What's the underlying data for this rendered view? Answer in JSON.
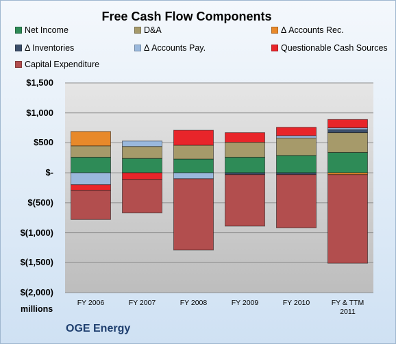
{
  "chart_data": {
    "type": "bar",
    "stacked": true,
    "title": "Free Cash Flow Components",
    "categories": [
      "FY 2006",
      "FY 2007",
      "FY 2008",
      "FY 2009",
      "FY 2010",
      "FY & TTM 2011"
    ],
    "ylim": [
      -2000,
      1500
    ],
    "yticks": [
      1500,
      1000,
      500,
      0,
      -500,
      -1000,
      -1500,
      -2000
    ],
    "ytick_labels": [
      "$1,500",
      "$1,000",
      "$500",
      "$-",
      "$(500)",
      "$(1,000)",
      "$(1,500)",
      "$(2,000)"
    ],
    "unit_label": "millions",
    "grid": true,
    "legend_position": "top",
    "series": [
      {
        "name": "Net Income",
        "color": "#2e8b57",
        "values": [
          260,
          240,
          230,
          260,
          290,
          340
        ]
      },
      {
        "name": "D&A",
        "color": "#a69a6a",
        "values": [
          190,
          200,
          230,
          250,
          290,
          330
        ]
      },
      {
        "name": "Δ Accounts Rec.",
        "color": "#e8892a",
        "values": [
          240,
          0,
          0,
          0,
          0,
          -30
        ]
      },
      {
        "name": "Δ Inventories",
        "color": "#3c4f6b",
        "values": [
          0,
          0,
          0,
          -30,
          -30,
          50
        ]
      },
      {
        "name": "Δ Accounts Pay.",
        "color": "#9ab8dc",
        "values": [
          -200,
          90,
          -100,
          0,
          40,
          30
        ]
      },
      {
        "name": "Questionable Cash Sources",
        "color": "#e8252a",
        "values": [
          -90,
          -110,
          250,
          160,
          140,
          140
        ]
      },
      {
        "name": "Capital Expenditure",
        "color": "#b24e4e",
        "values": [
          -490,
          -560,
          -1190,
          -860,
          -890,
          -1480
        ]
      }
    ]
  },
  "footer": "OGE Energy"
}
